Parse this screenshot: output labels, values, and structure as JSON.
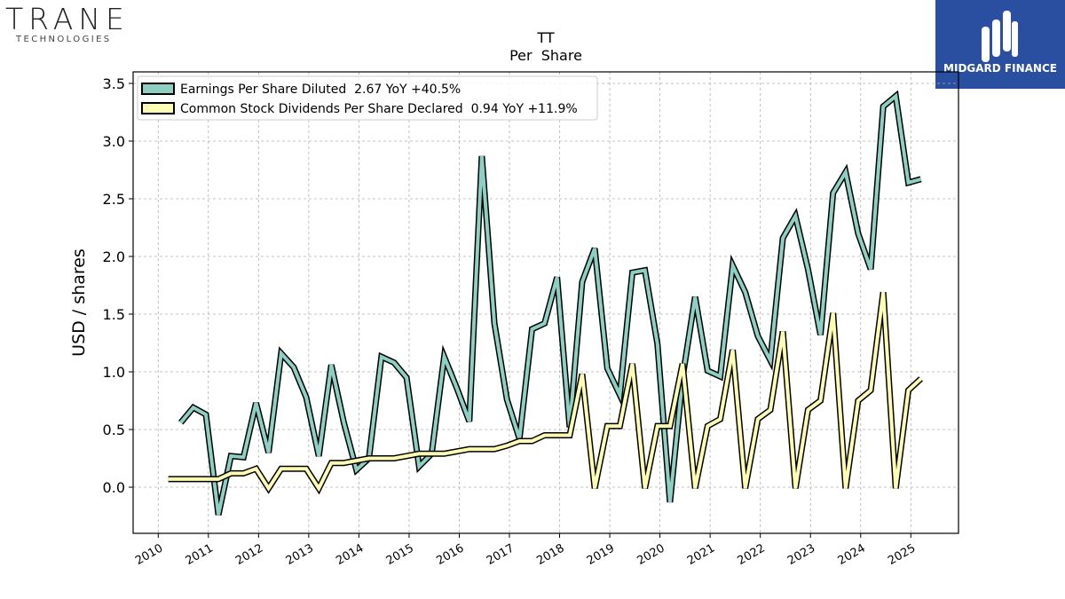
{
  "brand_left": {
    "name": "TRANE",
    "sub": "TECHNOLOGIES"
  },
  "brand_right": {
    "name": "MIDGARD FINANCE",
    "color": "#2a4fa0"
  },
  "chart_data": {
    "type": "line",
    "title": "TT",
    "subtitle": "Per  Share",
    "xlabel": "",
    "ylabel": "USD / shares",
    "xlim": [
      2009.5,
      2025.95
    ],
    "ylim": [
      -0.4,
      3.6
    ],
    "xticks": [
      "2010",
      "2011",
      "2012",
      "2013",
      "2014",
      "2015",
      "2016",
      "2017",
      "2018",
      "2019",
      "2020",
      "2021",
      "2022",
      "2023",
      "2024",
      "2025"
    ],
    "yticks": [
      "0.0",
      "0.5",
      "1.0",
      "1.5",
      "2.0",
      "2.5",
      "3.0",
      "3.5"
    ],
    "grid": true,
    "legend_position": "top-left",
    "series": [
      {
        "name": "Earnings Per Share Diluted  2.67 YoY +40.5%",
        "color": "#8ecfc3",
        "points": [
          [
            2010.45,
            0.56
          ],
          [
            2010.7,
            0.69
          ],
          [
            2010.95,
            0.63
          ],
          [
            2011.2,
            -0.24
          ],
          [
            2011.45,
            0.27
          ],
          [
            2011.7,
            0.26
          ],
          [
            2011.95,
            0.73
          ],
          [
            2012.2,
            0.3
          ],
          [
            2012.45,
            1.16
          ],
          [
            2012.7,
            1.04
          ],
          [
            2012.95,
            0.78
          ],
          [
            2013.2,
            0.27
          ],
          [
            2013.45,
            1.06
          ],
          [
            2013.7,
            0.56
          ],
          [
            2013.95,
            0.15
          ],
          [
            2014.2,
            0.25
          ],
          [
            2014.45,
            1.13
          ],
          [
            2014.7,
            1.08
          ],
          [
            2014.95,
            0.95
          ],
          [
            2015.2,
            0.18
          ],
          [
            2015.45,
            0.29
          ],
          [
            2015.7,
            1.13
          ],
          [
            2015.95,
            0.86
          ],
          [
            2016.2,
            0.57
          ],
          [
            2016.45,
            2.87
          ],
          [
            2016.7,
            1.42
          ],
          [
            2016.95,
            0.76
          ],
          [
            2017.2,
            0.42
          ],
          [
            2017.45,
            1.37
          ],
          [
            2017.7,
            1.42
          ],
          [
            2017.95,
            1.82
          ],
          [
            2018.2,
            0.52
          ],
          [
            2018.45,
            1.78
          ],
          [
            2018.7,
            2.07
          ],
          [
            2018.95,
            1.03
          ],
          [
            2019.2,
            0.8
          ],
          [
            2019.45,
            1.86
          ],
          [
            2019.7,
            1.88
          ],
          [
            2019.95,
            1.24
          ],
          [
            2020.2,
            -0.13
          ],
          [
            2020.45,
            0.95
          ],
          [
            2020.7,
            1.65
          ],
          [
            2020.95,
            1.01
          ],
          [
            2021.2,
            0.96
          ],
          [
            2021.45,
            1.92
          ],
          [
            2021.7,
            1.69
          ],
          [
            2021.95,
            1.31
          ],
          [
            2022.2,
            1.1
          ],
          [
            2022.45,
            2.16
          ],
          [
            2022.7,
            2.35
          ],
          [
            2022.95,
            1.89
          ],
          [
            2023.2,
            1.32
          ],
          [
            2023.45,
            2.55
          ],
          [
            2023.7,
            2.73
          ],
          [
            2023.95,
            2.2
          ],
          [
            2024.2,
            1.89
          ],
          [
            2024.45,
            3.3
          ],
          [
            2024.7,
            3.39
          ],
          [
            2024.95,
            2.64
          ],
          [
            2025.2,
            2.67
          ]
        ]
      },
      {
        "name": "Common Stock Dividends Per Share Declared  0.94 YoY +11.9%",
        "color": "#fdfdb3",
        "points": [
          [
            2010.2,
            0.07
          ],
          [
            2010.45,
            0.07
          ],
          [
            2010.7,
            0.07
          ],
          [
            2010.95,
            0.07
          ],
          [
            2011.2,
            0.07
          ],
          [
            2011.45,
            0.12
          ],
          [
            2011.7,
            0.12
          ],
          [
            2011.95,
            0.16
          ],
          [
            2012.2,
            -0.01
          ],
          [
            2012.45,
            0.16
          ],
          [
            2012.7,
            0.16
          ],
          [
            2012.95,
            0.16
          ],
          [
            2013.2,
            -0.01
          ],
          [
            2013.45,
            0.21
          ],
          [
            2013.7,
            0.21
          ],
          [
            2013.95,
            0.23
          ],
          [
            2014.2,
            0.25
          ],
          [
            2014.45,
            0.25
          ],
          [
            2014.7,
            0.25
          ],
          [
            2014.95,
            0.27
          ],
          [
            2015.2,
            0.29
          ],
          [
            2015.45,
            0.29
          ],
          [
            2015.7,
            0.29
          ],
          [
            2015.95,
            0.31
          ],
          [
            2016.2,
            0.33
          ],
          [
            2016.45,
            0.33
          ],
          [
            2016.7,
            0.33
          ],
          [
            2016.95,
            0.36
          ],
          [
            2017.2,
            0.4
          ],
          [
            2017.45,
            0.4
          ],
          [
            2017.7,
            0.45
          ],
          [
            2017.95,
            0.45
          ],
          [
            2018.2,
            0.45
          ],
          [
            2018.45,
            0.98
          ],
          [
            2018.7,
            -0.01
          ],
          [
            2018.95,
            0.53
          ],
          [
            2019.2,
            0.53
          ],
          [
            2019.45,
            1.07
          ],
          [
            2019.7,
            -0.01
          ],
          [
            2019.95,
            0.53
          ],
          [
            2020.2,
            0.53
          ],
          [
            2020.45,
            1.07
          ],
          [
            2020.7,
            -0.01
          ],
          [
            2020.95,
            0.53
          ],
          [
            2021.2,
            0.59
          ],
          [
            2021.45,
            1.19
          ],
          [
            2021.7,
            -0.01
          ],
          [
            2021.95,
            0.59
          ],
          [
            2022.2,
            0.67
          ],
          [
            2022.45,
            1.35
          ],
          [
            2022.7,
            -0.01
          ],
          [
            2022.95,
            0.67
          ],
          [
            2023.2,
            0.75
          ],
          [
            2023.45,
            1.51
          ],
          [
            2023.7,
            -0.01
          ],
          [
            2023.95,
            0.75
          ],
          [
            2024.2,
            0.84
          ],
          [
            2024.45,
            1.69
          ],
          [
            2024.7,
            -0.01
          ],
          [
            2024.95,
            0.84
          ],
          [
            2025.2,
            0.94
          ]
        ]
      }
    ]
  }
}
